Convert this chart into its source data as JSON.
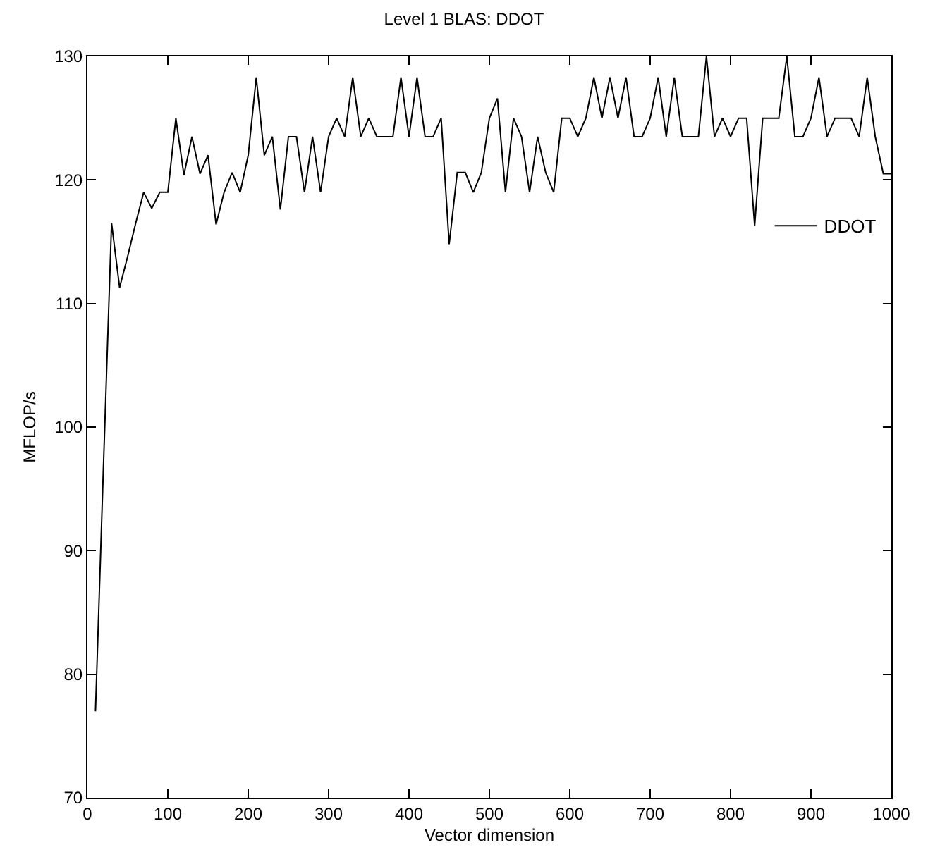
{
  "chart_data": {
    "type": "line",
    "title": "Level 1 BLAS: DDOT",
    "xlabel": "Vector dimension",
    "ylabel": "MFLOP/s",
    "x": [
      10,
      20,
      30,
      40,
      50,
      60,
      70,
      80,
      90,
      100,
      110,
      120,
      130,
      140,
      150,
      160,
      170,
      180,
      190,
      200,
      210,
      220,
      230,
      240,
      250,
      260,
      270,
      280,
      290,
      300,
      310,
      320,
      330,
      340,
      350,
      360,
      370,
      380,
      390,
      400,
      410,
      420,
      430,
      440,
      450,
      460,
      470,
      480,
      490,
      500,
      510,
      520,
      530,
      540,
      550,
      560,
      570,
      580,
      590,
      600,
      610,
      620,
      630,
      640,
      650,
      660,
      670,
      680,
      690,
      700,
      710,
      720,
      730,
      740,
      750,
      760,
      770,
      780,
      790,
      800,
      810,
      820,
      830,
      840,
      850,
      860,
      870,
      880,
      890,
      900,
      910,
      920,
      930,
      940,
      950,
      960,
      970,
      980,
      990,
      1000
    ],
    "series": [
      {
        "name": "DDOT",
        "color": "#000000",
        "values": [
          77,
          97,
          116.5,
          111.3,
          113.8,
          116.5,
          119,
          117.7,
          119,
          119,
          125,
          120.4,
          123.5,
          120.5,
          122,
          116.4,
          119,
          120.6,
          119,
          122,
          128.3,
          122,
          123.5,
          117.6,
          123.5,
          123.5,
          119,
          123.5,
          119,
          123.5,
          125,
          123.5,
          128.3,
          123.5,
          125,
          123.5,
          123.5,
          123.5,
          128.3,
          123.5,
          128.3,
          123.5,
          123.5,
          125,
          114.8,
          120.6,
          120.6,
          119,
          120.6,
          125,
          126.6,
          119,
          125,
          123.5,
          119,
          123.5,
          120.6,
          119,
          125,
          125,
          123.5,
          125,
          128.3,
          125,
          128.3,
          125,
          128.3,
          123.5,
          123.5,
          125,
          128.3,
          123.5,
          128.3,
          123.5,
          123.5,
          123.5,
          130,
          123.5,
          125,
          123.5,
          125,
          125,
          116.3,
          125,
          125,
          125,
          130,
          123.5,
          123.5,
          125,
          128.3,
          123.5,
          125,
          125,
          125,
          123.5,
          128.3,
          123.5,
          120.5,
          120.5
        ]
      }
    ],
    "xlim": [
      0,
      1000
    ],
    "xticks": [
      0,
      100,
      200,
      300,
      400,
      500,
      600,
      700,
      800,
      900,
      1000
    ],
    "ylim": [
      70,
      130
    ],
    "yticks": [
      70,
      80,
      90,
      100,
      110,
      120,
      130
    ],
    "legend": "top right",
    "marker": "none",
    "line_style": "solid"
  }
}
